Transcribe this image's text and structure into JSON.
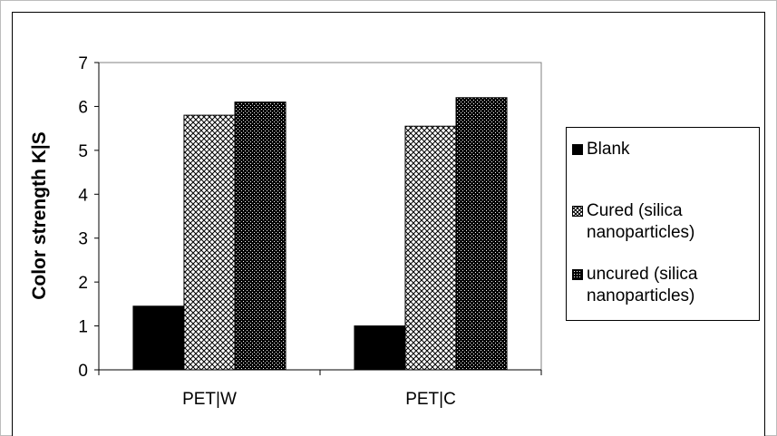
{
  "chart_data": {
    "type": "bar",
    "categories": [
      "PET|W",
      "PET|C"
    ],
    "series": [
      {
        "name": "Blank",
        "values": [
          1.45,
          1.0
        ],
        "pattern": "solid",
        "color": "#000000"
      },
      {
        "name": "Cured (silica nanoparticles)",
        "values": [
          5.8,
          5.55
        ],
        "pattern": "crosshatch",
        "color": "#000000"
      },
      {
        "name": "uncured (silica nanoparticles)",
        "values": [
          6.1,
          6.2
        ],
        "pattern": "dense-dots",
        "color": "#000000"
      }
    ],
    "ylabel": "Color strength K|S",
    "xlabel": "",
    "ylim": [
      0,
      7
    ],
    "yticks": [
      "0",
      "1",
      "2",
      "3",
      "4",
      "5",
      "6",
      "7"
    ],
    "grid": false,
    "legend_position": "right",
    "plot_background": "#ffffff"
  }
}
